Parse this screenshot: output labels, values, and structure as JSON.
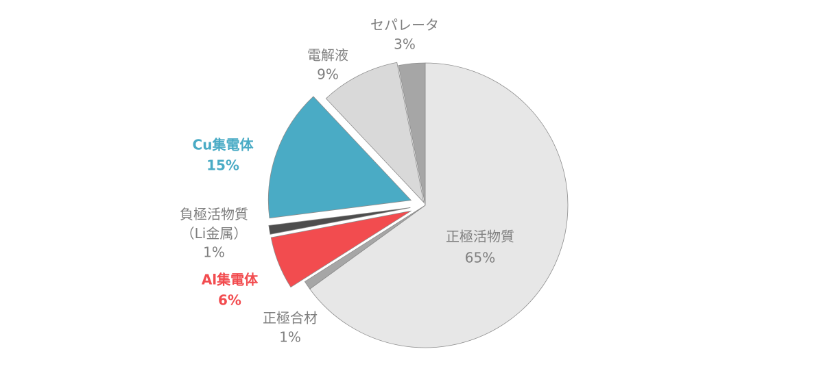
{
  "chart_data": {
    "type": "pie",
    "categories": [
      "正極活物質",
      "正極合材",
      "Al集電体",
      "負極活物質（Li金属）",
      "Cu集電体",
      "電解液",
      "セパレータ"
    ],
    "values": [
      65,
      1,
      6,
      1,
      15,
      9,
      3
    ],
    "value_labels": [
      "65%",
      "1%",
      "6%",
      "1%",
      "15%",
      "9%",
      "3%"
    ],
    "colors": [
      "#e7e7e7",
      "#a6a6a6",
      "#f24c4f",
      "#4d4d4d",
      "#4aabc5",
      "#d9d9d9",
      "#a6a6a6"
    ],
    "label_colors": [
      "#7f7f7f",
      "#7f7f7f",
      "#f24c4f",
      "#7f7f7f",
      "#4aabc5",
      "#7f7f7f",
      "#7f7f7f"
    ]
  }
}
